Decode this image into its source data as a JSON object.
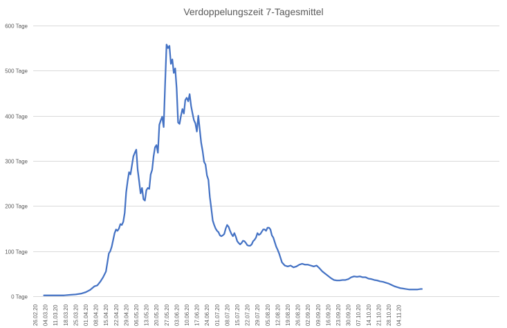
{
  "chart_data": {
    "type": "line",
    "title": "Verdoppelungszeit 7-Tagesmittel",
    "xlabel": "",
    "ylabel": "",
    "y_unit": "Tage",
    "ylim": [
      0,
      600
    ],
    "yticks": [
      0,
      100,
      200,
      300,
      400,
      500,
      600
    ],
    "ytick_labels": [
      "0 Tage",
      "100 Tage",
      "200 Tage",
      "300 Tage",
      "400 Tage",
      "500 Tage",
      "600 Tage"
    ],
    "x_tick_labels": [
      "26.02.20",
      "04.03.20",
      "11.03.20",
      "18.03.20",
      "25.03.20",
      "01.04.20",
      "08.04.20",
      "15.04.20",
      "22.04.20",
      "29.04.20",
      "06.05.20",
      "13.05.20",
      "20.05.20",
      "27.05.20",
      "03.06.20",
      "10.06.20",
      "17.06.20",
      "24.06.20",
      "01.07.20",
      "08.07.20",
      "15.07.20",
      "22.07.20",
      "29.07.20",
      "05.08.20",
      "12.08.20",
      "19.08.20",
      "26.08.20",
      "02.09.20",
      "09.09.20",
      "16.09.20",
      "23.09.20",
      "30.09.20",
      "07.10.20",
      "14.10.20",
      "21.10.20",
      "28.10.20",
      "04.11.20"
    ],
    "grid": true,
    "legend": "none",
    "colors": {
      "line": "#4472c4",
      "grid": "#d9d9d9",
      "text": "#595959"
    },
    "series": [
      {
        "name": "",
        "points": [
          [
            "03.03.20",
            2
          ],
          [
            "10.03.20",
            2
          ],
          [
            "17.03.20",
            2
          ],
          [
            "21.03.20",
            3
          ],
          [
            "25.03.20",
            4
          ],
          [
            "29.03.20",
            6
          ],
          [
            "01.04.20",
            9
          ],
          [
            "04.04.20",
            14
          ],
          [
            "07.04.20",
            22
          ],
          [
            "09.04.20",
            24
          ],
          [
            "11.04.20",
            32
          ],
          [
            "13.04.20",
            42
          ],
          [
            "15.04.20",
            55
          ],
          [
            "16.04.20",
            75
          ],
          [
            "17.04.20",
            95
          ],
          [
            "18.04.20",
            100
          ],
          [
            "19.04.20",
            110
          ],
          [
            "20.04.20",
            125
          ],
          [
            "21.04.20",
            140
          ],
          [
            "22.04.20",
            148
          ],
          [
            "23.04.20",
            145
          ],
          [
            "24.04.20",
            150
          ],
          [
            "25.04.20",
            160
          ],
          [
            "26.04.20",
            158
          ],
          [
            "27.04.20",
            165
          ],
          [
            "28.04.20",
            185
          ],
          [
            "29.04.20",
            230
          ],
          [
            "30.04.20",
            255
          ],
          [
            "01.05.20",
            275
          ],
          [
            "02.05.20",
            270
          ],
          [
            "03.05.20",
            290
          ],
          [
            "04.05.20",
            310
          ],
          [
            "05.05.20",
            318
          ],
          [
            "06.05.20",
            325
          ],
          [
            "07.05.20",
            280
          ],
          [
            "08.05.20",
            255
          ],
          [
            "09.05.20",
            228
          ],
          [
            "10.05.20",
            240
          ],
          [
            "11.05.20",
            215
          ],
          [
            "12.05.20",
            212
          ],
          [
            "13.05.20",
            235
          ],
          [
            "14.05.20",
            240
          ],
          [
            "15.05.20",
            238
          ],
          [
            "16.05.20",
            270
          ],
          [
            "17.05.20",
            280
          ],
          [
            "18.05.20",
            310
          ],
          [
            "19.05.20",
            330
          ],
          [
            "20.05.20",
            335
          ],
          [
            "21.05.20",
            318
          ],
          [
            "22.05.20",
            380
          ],
          [
            "23.05.20",
            390
          ],
          [
            "24.05.20",
            398
          ],
          [
            "25.05.20",
            375
          ],
          [
            "26.05.20",
            470
          ],
          [
            "27.05.20",
            558
          ],
          [
            "28.05.20",
            550
          ],
          [
            "29.05.20",
            555
          ],
          [
            "30.05.20",
            515
          ],
          [
            "31.05.20",
            525
          ],
          [
            "01.06.20",
            495
          ],
          [
            "02.06.20",
            505
          ],
          [
            "03.06.20",
            460
          ],
          [
            "04.06.20",
            385
          ],
          [
            "05.06.20",
            382
          ],
          [
            "06.06.20",
            400
          ],
          [
            "07.06.20",
            415
          ],
          [
            "08.06.20",
            405
          ],
          [
            "09.06.20",
            435
          ],
          [
            "10.06.20",
            440
          ],
          [
            "11.06.20",
            432
          ],
          [
            "12.06.20",
            448
          ],
          [
            "13.06.20",
            422
          ],
          [
            "14.06.20",
            405
          ],
          [
            "15.06.20",
            390
          ],
          [
            "16.06.20",
            383
          ],
          [
            "17.06.20",
            365
          ],
          [
            "18.06.20",
            400
          ],
          [
            "19.06.20",
            370
          ],
          [
            "20.06.20",
            340
          ],
          [
            "21.06.20",
            322
          ],
          [
            "22.06.20",
            298
          ],
          [
            "23.06.20",
            292
          ],
          [
            "24.06.20",
            268
          ],
          [
            "25.06.20",
            258
          ],
          [
            "26.06.20",
            220
          ],
          [
            "27.06.20",
            195
          ],
          [
            "28.06.20",
            168
          ],
          [
            "29.06.20",
            158
          ],
          [
            "30.06.20",
            150
          ],
          [
            "01.07.20",
            145
          ],
          [
            "02.07.20",
            142
          ],
          [
            "03.07.20",
            135
          ],
          [
            "04.07.20",
            133
          ],
          [
            "05.07.20",
            135
          ],
          [
            "06.07.20",
            138
          ],
          [
            "07.07.20",
            150
          ],
          [
            "08.07.20",
            158
          ],
          [
            "09.07.20",
            154
          ],
          [
            "10.07.20",
            145
          ],
          [
            "11.07.20",
            138
          ],
          [
            "12.07.20",
            133
          ],
          [
            "13.07.20",
            140
          ],
          [
            "14.07.20",
            132
          ],
          [
            "15.07.20",
            122
          ],
          [
            "16.07.20",
            118
          ],
          [
            "17.07.20",
            115
          ],
          [
            "18.07.20",
            118
          ],
          [
            "19.07.20",
            123
          ],
          [
            "20.07.20",
            122
          ],
          [
            "21.07.20",
            118
          ],
          [
            "22.07.20",
            113
          ],
          [
            "23.07.20",
            112
          ],
          [
            "24.07.20",
            112
          ],
          [
            "25.07.20",
            115
          ],
          [
            "26.07.20",
            122
          ],
          [
            "27.07.20",
            125
          ],
          [
            "28.07.20",
            130
          ],
          [
            "29.07.20",
            140
          ],
          [
            "30.07.20",
            136
          ],
          [
            "31.07.20",
            138
          ],
          [
            "01.08.20",
            143
          ],
          [
            "02.08.20",
            148
          ],
          [
            "03.08.20",
            148
          ],
          [
            "04.08.20",
            145
          ],
          [
            "05.08.20",
            152
          ],
          [
            "06.08.20",
            152
          ],
          [
            "07.08.20",
            148
          ],
          [
            "08.08.20",
            135
          ],
          [
            "09.08.20",
            130
          ],
          [
            "10.08.20",
            120
          ],
          [
            "11.08.20",
            110
          ],
          [
            "12.08.20",
            103
          ],
          [
            "13.08.20",
            95
          ],
          [
            "14.08.20",
            85
          ],
          [
            "15.08.20",
            75
          ],
          [
            "17.08.20",
            68
          ],
          [
            "19.08.20",
            66
          ],
          [
            "21.08.20",
            68
          ],
          [
            "23.08.20",
            64
          ],
          [
            "25.08.20",
            66
          ],
          [
            "27.08.20",
            70
          ],
          [
            "29.08.20",
            72
          ],
          [
            "31.08.20",
            70
          ],
          [
            "02.09.20",
            70
          ],
          [
            "04.09.20",
            68
          ],
          [
            "06.09.20",
            66
          ],
          [
            "08.09.20",
            68
          ],
          [
            "10.09.20",
            62
          ],
          [
            "12.09.20",
            55
          ],
          [
            "14.09.20",
            50
          ],
          [
            "16.09.20",
            45
          ],
          [
            "18.09.20",
            40
          ],
          [
            "20.09.20",
            36
          ],
          [
            "22.09.20",
            35
          ],
          [
            "24.09.20",
            35
          ],
          [
            "26.09.20",
            36
          ],
          [
            "28.09.20",
            36
          ],
          [
            "30.09.20",
            38
          ],
          [
            "02.10.20",
            42
          ],
          [
            "04.10.20",
            44
          ],
          [
            "06.10.20",
            43
          ],
          [
            "08.10.20",
            44
          ],
          [
            "10.10.20",
            42
          ],
          [
            "12.10.20",
            42
          ],
          [
            "14.10.20",
            39
          ],
          [
            "16.10.20",
            38
          ],
          [
            "18.10.20",
            36
          ],
          [
            "20.10.20",
            35
          ],
          [
            "22.10.20",
            33
          ],
          [
            "24.10.20",
            32
          ],
          [
            "26.10.20",
            30
          ],
          [
            "28.10.20",
            28
          ],
          [
            "30.10.20",
            25
          ],
          [
            "01.11.20",
            22
          ],
          [
            "03.11.20",
            20
          ],
          [
            "05.11.20",
            18
          ],
          [
            "07.11.20",
            17
          ],
          [
            "09.11.20",
            16
          ],
          [
            "11.11.20",
            15
          ],
          [
            "13.11.20",
            15
          ],
          [
            "15.11.20",
            15
          ],
          [
            "17.11.20",
            15
          ],
          [
            "19.11.20",
            16
          ],
          [
            "20.11.20",
            16
          ]
        ]
      }
    ]
  }
}
